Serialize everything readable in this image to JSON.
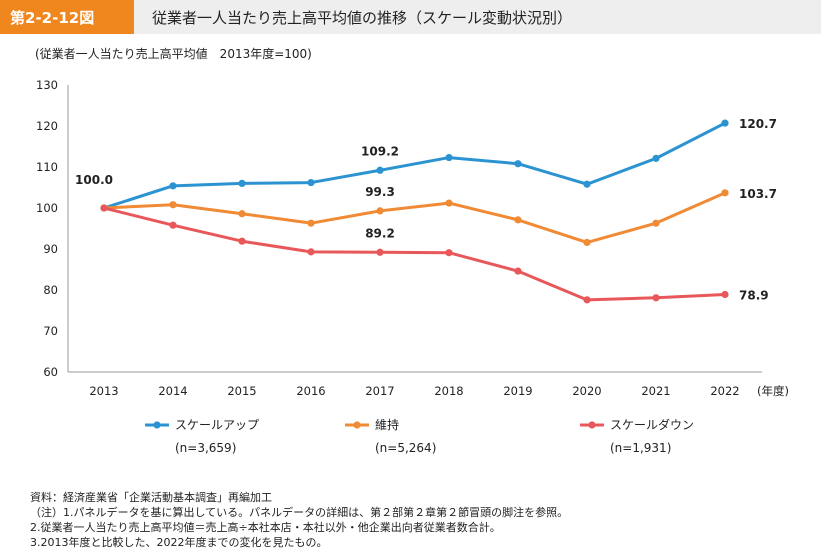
{
  "header": {
    "figure_number": "第2-2-12図",
    "title": "従業者一人当たり売上高平均値の推移（スケール変動状況別）"
  },
  "y_unit_label": "(従業者一人当たり売上高平均値　2013年度=100)",
  "chart_data": {
    "type": "line",
    "title": "従業者一人当たり売上高平均値の推移（スケール変動状況別）",
    "xlabel": "(年度)",
    "ylabel": "(従業者一人当たり売上高平均値　2013年度=100)",
    "x": [
      "2013",
      "2014",
      "2015",
      "2016",
      "2017",
      "2018",
      "2019",
      "2020",
      "2021",
      "2022"
    ],
    "ylim": [
      60,
      130
    ],
    "yticks": [
      60,
      70,
      80,
      90,
      100,
      110,
      120,
      130
    ],
    "legend_position": "bottom",
    "series": [
      {
        "name": "スケールアップ",
        "n_label": "(n=3,659)",
        "color": "#2b93d1",
        "values": [
          100.0,
          105.4,
          106.0,
          106.2,
          109.2,
          112.3,
          110.8,
          105.8,
          112.1,
          120.7
        ]
      },
      {
        "name": "維持",
        "n_label": "(n=5,264)",
        "color": "#f08a34",
        "values": [
          100.0,
          100.8,
          98.6,
          96.3,
          99.3,
          101.2,
          97.1,
          91.6,
          96.3,
          103.7
        ]
      },
      {
        "name": "スケールダウン",
        "n_label": "(n=1,931)",
        "color": "#e8585a",
        "values": [
          100.0,
          95.8,
          91.9,
          89.3,
          89.2,
          89.1,
          84.6,
          77.6,
          78.1,
          78.9
        ]
      }
    ],
    "annotations": [
      {
        "series": 0,
        "index": 0,
        "text": "100.0"
      },
      {
        "series": 0,
        "index": 4,
        "text": "109.2"
      },
      {
        "series": 1,
        "index": 4,
        "text": "99.3"
      },
      {
        "series": 2,
        "index": 4,
        "text": "89.2"
      },
      {
        "series": 0,
        "index": 9,
        "text": "120.7"
      },
      {
        "series": 1,
        "index": 9,
        "text": "103.7"
      },
      {
        "series": 2,
        "index": 9,
        "text": "78.9"
      }
    ]
  },
  "notes": [
    "資料：経済産業省「企業活動基本調査」再編加工",
    "（注）1.パネルデータを基に算出している。パネルデータの詳細は、第２部第２章第２節冒頭の脚注を参照。",
    "2.従業者一人当たり売上高平均値＝売上高÷本社本店・本社以外・他企業出向者従業者数合計。",
    "3.2013年度と比較した、2022年度までの変化を見たもの。"
  ]
}
